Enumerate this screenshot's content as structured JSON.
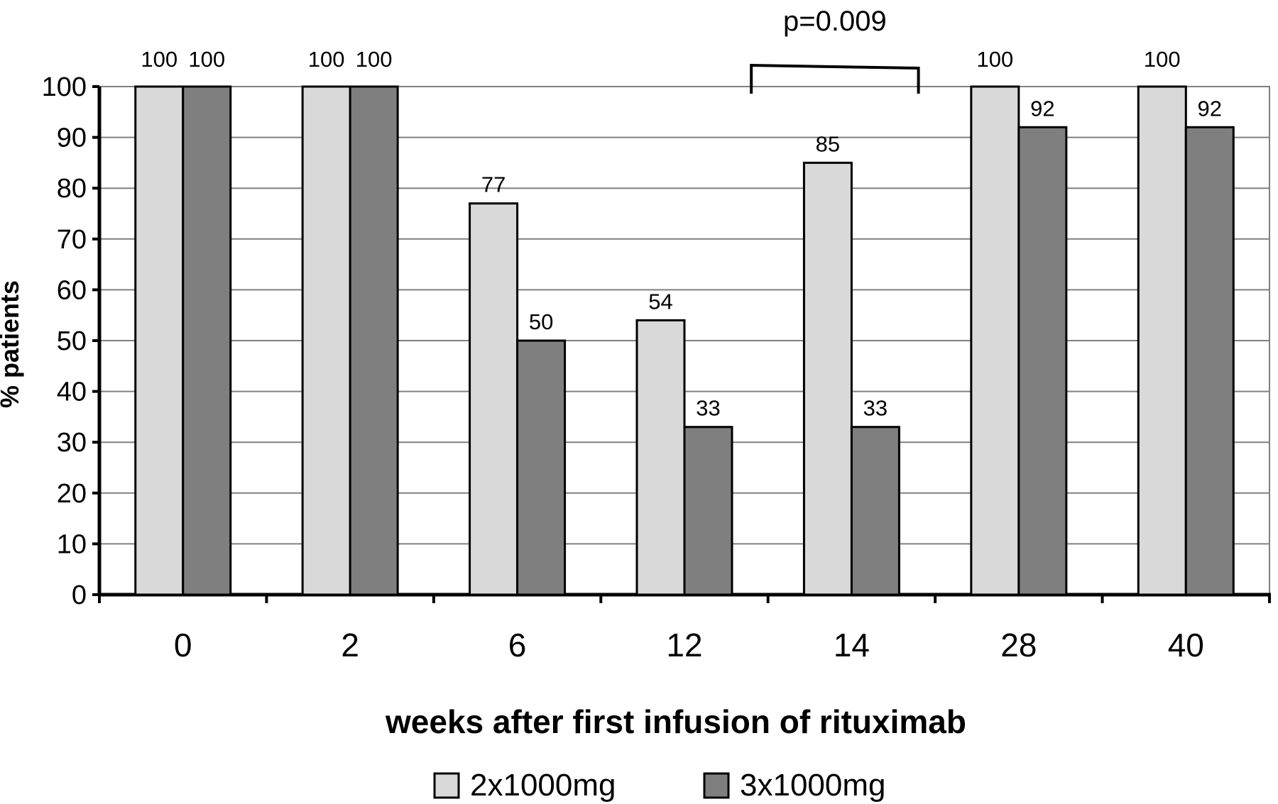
{
  "chart_data": {
    "type": "bar",
    "title": "",
    "xlabel": "weeks after first infusion of rituximab",
    "ylabel": "% patients",
    "ylim": [
      0,
      100
    ],
    "yticks": [
      "0",
      "10",
      "20",
      "30",
      "40",
      "50",
      "60",
      "70",
      "80",
      "90",
      "100"
    ],
    "categories": [
      "0",
      "2",
      "6",
      "12",
      "14",
      "28",
      "40"
    ],
    "series": [
      {
        "name": "2x1000mg",
        "color": "#d9d9d9",
        "values": [
          100,
          100,
          77,
          54,
          85,
          100,
          100
        ],
        "labels": [
          "100",
          "100",
          "77",
          "54",
          "85",
          "100",
          "100"
        ]
      },
      {
        "name": "3x1000mg",
        "color": "#7f7f7f",
        "values": [
          100,
          100,
          50,
          33,
          33,
          92,
          92
        ],
        "labels": [
          "100",
          "100",
          "50",
          "33",
          "33",
          "92",
          "92"
        ]
      }
    ],
    "grid": true,
    "legend_position": "bottom-center",
    "annotation": {
      "text": "p=0.009",
      "from_category": "12",
      "to_category": "14"
    }
  }
}
